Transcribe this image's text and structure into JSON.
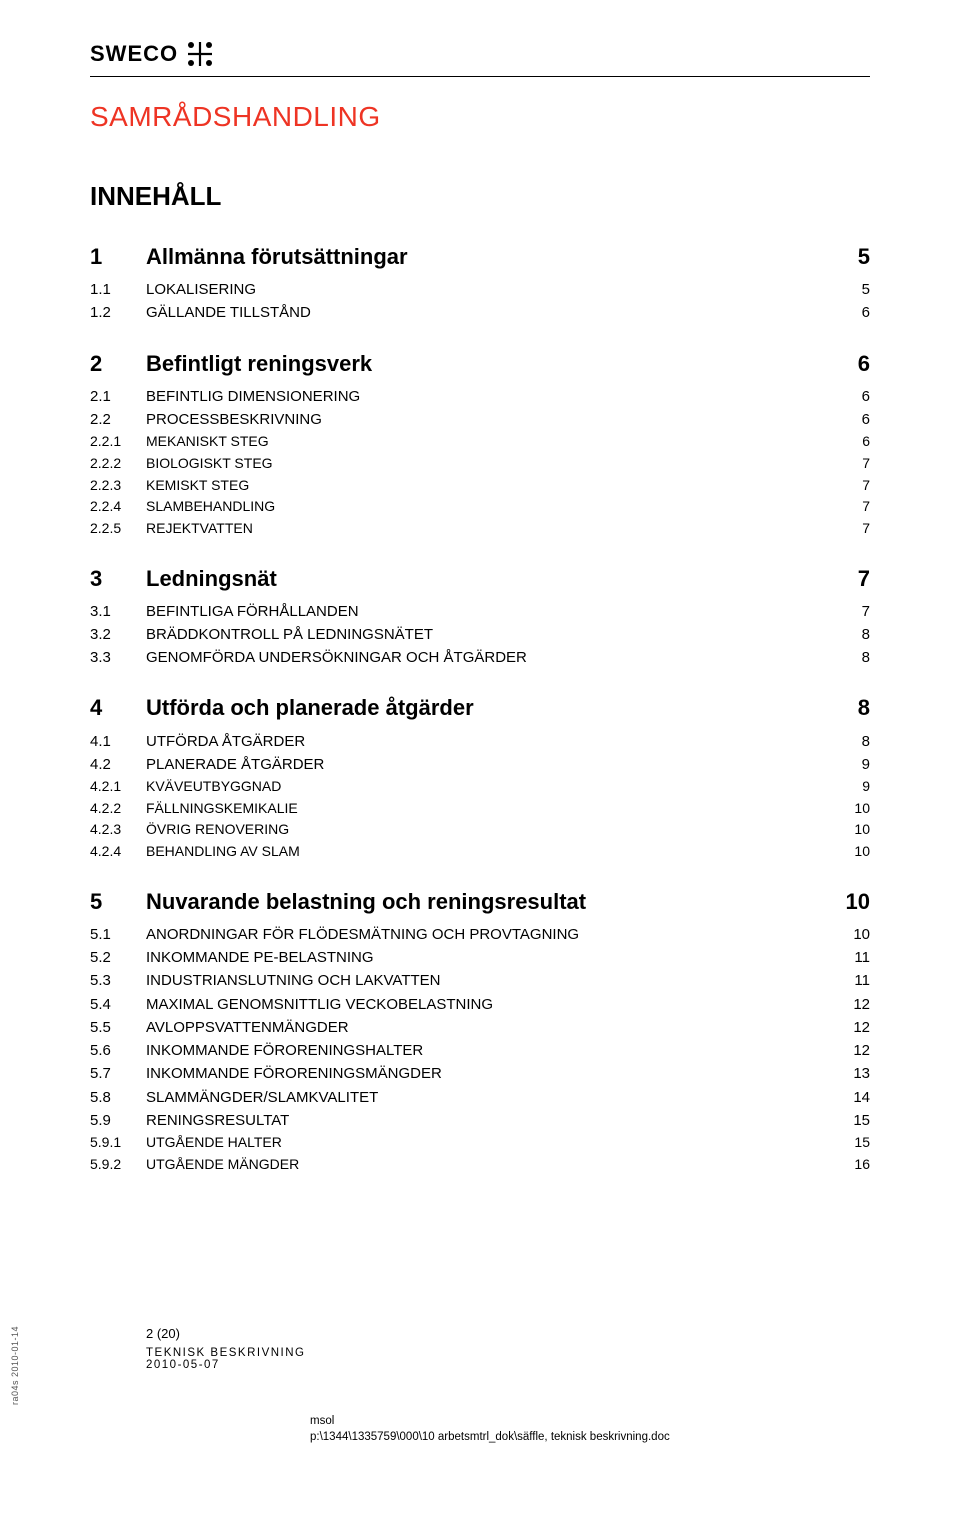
{
  "logo": {
    "text": "SWECO"
  },
  "doc_title": "SAMRÅDSHANDLING",
  "toc_heading": "INNEHÅLL",
  "colors": {
    "brand_text": "#000000",
    "title_color": "#ee3424",
    "body_text": "#000000",
    "background": "#ffffff",
    "rule": "#000000"
  },
  "toc": [
    {
      "level": 1,
      "num": "1",
      "label": "Allmänna förutsättningar",
      "page": "5"
    },
    {
      "level": 2,
      "num": "1.1",
      "label": "LOKALISERING",
      "page": "5"
    },
    {
      "level": 2,
      "num": "1.2",
      "label": "GÄLLANDE TILLSTÅND",
      "page": "6"
    },
    {
      "level": 1,
      "num": "2",
      "label": "Befintligt reningsverk",
      "page": "6"
    },
    {
      "level": 2,
      "num": "2.1",
      "label": "BEFINTLIG DIMENSIONERING",
      "page": "6"
    },
    {
      "level": 2,
      "num": "2.2",
      "label": "PROCESSBESKRIVNING",
      "page": "6"
    },
    {
      "level": 3,
      "num": "2.2.1",
      "label": "MEKANISKT STEG",
      "page": "6"
    },
    {
      "level": 3,
      "num": "2.2.2",
      "label": "BIOLOGISKT STEG",
      "page": "7"
    },
    {
      "level": 3,
      "num": "2.2.3",
      "label": "KEMISKT STEG",
      "page": "7"
    },
    {
      "level": 3,
      "num": "2.2.4",
      "label": "SLAMBEHANDLING",
      "page": "7"
    },
    {
      "level": 3,
      "num": "2.2.5",
      "label": "REJEKTVATTEN",
      "page": "7"
    },
    {
      "level": 1,
      "num": "3",
      "label": "Ledningsnät",
      "page": "7"
    },
    {
      "level": 2,
      "num": "3.1",
      "label": "BEFINTLIGA FÖRHÅLLANDEN",
      "page": "7"
    },
    {
      "level": 2,
      "num": "3.2",
      "label": "BRÄDDKONTROLL PÅ LEDNINGSNÄTET",
      "page": "8"
    },
    {
      "level": 2,
      "num": "3.3",
      "label": "GENOMFÖRDA UNDERSÖKNINGAR OCH ÅTGÄRDER",
      "page": "8"
    },
    {
      "level": 1,
      "num": "4",
      "label": "Utförda och planerade åtgärder",
      "page": "8"
    },
    {
      "level": 2,
      "num": "4.1",
      "label": "UTFÖRDA ÅTGÄRDER",
      "page": "8"
    },
    {
      "level": 2,
      "num": "4.2",
      "label": "PLANERADE ÅTGÄRDER",
      "page": "9"
    },
    {
      "level": 3,
      "num": "4.2.1",
      "label": "KVÄVEUTBYGGNAD",
      "page": "9"
    },
    {
      "level": 3,
      "num": "4.2.2",
      "label": "FÄLLNINGSKEMIKALIE",
      "page": "10"
    },
    {
      "level": 3,
      "num": "4.2.3",
      "label": "ÖVRIG RENOVERING",
      "page": "10"
    },
    {
      "level": 3,
      "num": "4.2.4",
      "label": "BEHANDLING  AV SLAM",
      "page": "10"
    },
    {
      "level": 1,
      "num": "5",
      "label": "Nuvarande belastning och reningsresultat",
      "page": "10"
    },
    {
      "level": 2,
      "num": "5.1",
      "label": "ANORDNINGAR FÖR FLÖDESMÄTNING OCH PROVTAGNING",
      "page": "10"
    },
    {
      "level": 2,
      "num": "5.2",
      "label": "INKOMMANDE PE-BELASTNING",
      "page": "11"
    },
    {
      "level": 2,
      "num": "5.3",
      "label": "INDUSTRIANSLUTNING OCH LAKVATTEN",
      "page": "11"
    },
    {
      "level": 2,
      "num": "5.4",
      "label": "MAXIMAL GENOMSNITTLIG VECKOBELASTNING",
      "page": "12"
    },
    {
      "level": 2,
      "num": "5.5",
      "label": "AVLOPPSVATTENMÄNGDER",
      "page": "12"
    },
    {
      "level": 2,
      "num": "5.6",
      "label": "INKOMMANDE FÖRORENINGSHALTER",
      "page": "12"
    },
    {
      "level": 2,
      "num": "5.7",
      "label": "INKOMMANDE FÖRORENINGSMÄNGDER",
      "page": "13"
    },
    {
      "level": 2,
      "num": "5.8",
      "label": "SLAMMÄNGDER/SLAMKVALITET",
      "page": "14"
    },
    {
      "level": 2,
      "num": "5.9",
      "label": "RENINGSRESULTAT",
      "page": "15"
    },
    {
      "level": 3,
      "num": "5.9.1",
      "label": "UTGÅENDE HALTER",
      "page": "15"
    },
    {
      "level": 3,
      "num": "5.9.2",
      "label": "UTGÅENDE MÄNGDER",
      "page": "16"
    }
  ],
  "footer": {
    "page_indicator": "2 (20)",
    "title": "TEKNISK BESKRIVNING",
    "date": "2010-05-07",
    "side_text": "ra04s 2010-01-14",
    "author": "msol",
    "path": "p:\\1344\\1335759\\000\\10 arbetsmtrl_dok\\säffle, teknisk beskrivning.doc"
  }
}
